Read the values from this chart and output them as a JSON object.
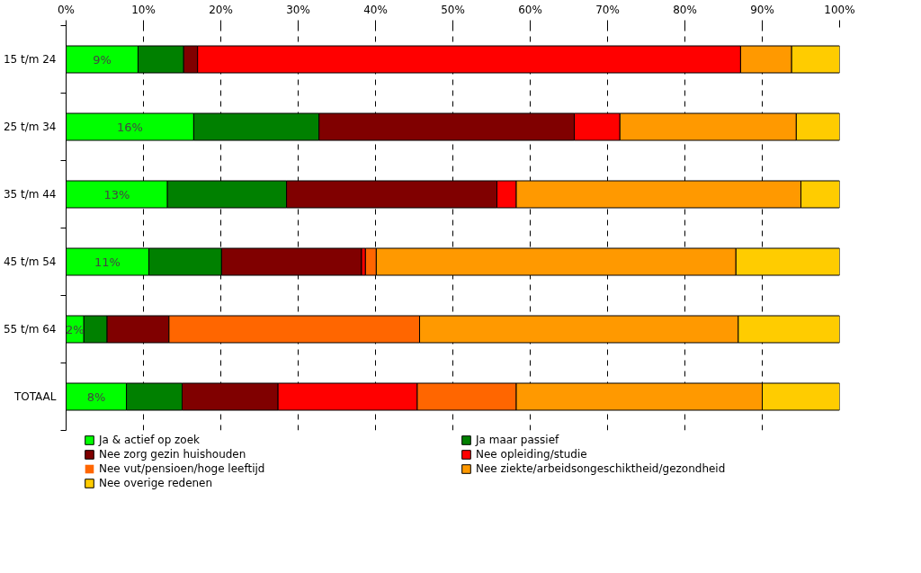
{
  "chart_data": {
    "type": "bar",
    "orientation": "horizontal",
    "stacked": true,
    "categories": [
      "15 t/m 24",
      "25 t/m 34",
      "35 t/m 44",
      "45 t/m 54",
      "55 t/m 64",
      "TOTAAL"
    ],
    "series": [
      {
        "name": "Ja & actief op zoek",
        "color": "#00ff00",
        "values": [
          9.3,
          16.5,
          13.1,
          10.7,
          2.3,
          7.8
        ],
        "value_labels": [
          "9%",
          "16%",
          "13%",
          "11%",
          "2%",
          "8%"
        ]
      },
      {
        "name": "Ja maar passief",
        "color": "#008000",
        "values": [
          5.9,
          16.2,
          15.4,
          9.4,
          3.0,
          7.2
        ]
      },
      {
        "name": "Nee zorg gezin huishouden",
        "color": "#800000",
        "values": [
          1.8,
          33.0,
          27.2,
          18.1,
          8.0,
          12.4
        ]
      },
      {
        "name": "Nee opleiding/studie",
        "color": "#ff0000",
        "values": [
          70.2,
          5.9,
          2.5,
          0.5,
          0,
          18.0
        ]
      },
      {
        "name": "Nee vut/pensioen/hoge leeftijd",
        "color": "#ff6600",
        "values": [
          0,
          0,
          0,
          1.4,
          32.4,
          12.8
        ]
      },
      {
        "name": "Nee ziekte/arbeidsongeschiktheid/gezondheid",
        "color": "#ff9900",
        "values": [
          6.6,
          22.8,
          36.8,
          46.5,
          41.2,
          31.8
        ]
      },
      {
        "name": "Nee overige redenen",
        "color": "#ffcc00",
        "values": [
          6.2,
          5.6,
          5.0,
          13.4,
          13.1,
          10.0
        ]
      }
    ],
    "xlim": [
      0,
      100
    ],
    "xticks": [
      {
        "value": 0,
        "label": "0%"
      },
      {
        "value": 10,
        "label": "10%"
      },
      {
        "value": 20,
        "label": "20%"
      },
      {
        "value": 30,
        "label": "30%"
      },
      {
        "value": 40,
        "label": "40%"
      },
      {
        "value": 50,
        "label": "50%"
      },
      {
        "value": 60,
        "label": "60%"
      },
      {
        "value": 70,
        "label": "70%"
      },
      {
        "value": 80,
        "label": "80%"
      },
      {
        "value": 90,
        "label": "90%"
      },
      {
        "value": 100,
        "label": "100%"
      }
    ],
    "grid": "x",
    "legend": "bottom"
  }
}
